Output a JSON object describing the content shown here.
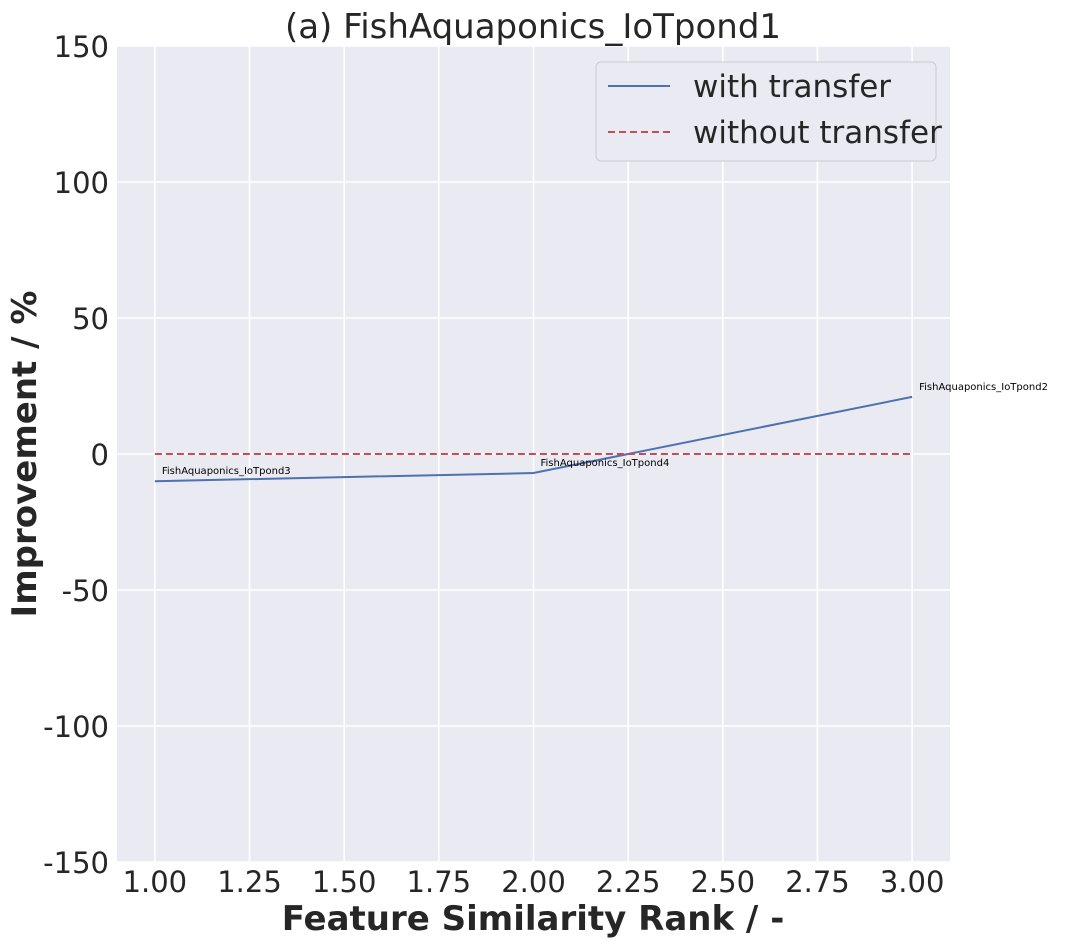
{
  "chart_data": {
    "type": "line",
    "title": "(a) FishAquaponics_IoTpond1",
    "xlabel": "Feature Similarity Rank / -",
    "ylabel": "Improvement / %",
    "xlim": [
      0.9,
      3.1
    ],
    "ylim": [
      -150,
      150
    ],
    "xticks": [
      1.0,
      1.25,
      1.5,
      1.75,
      2.0,
      2.25,
      2.5,
      2.75,
      3.0
    ],
    "xtick_labels": [
      "1.00",
      "1.25",
      "1.50",
      "1.75",
      "2.00",
      "2.25",
      "2.50",
      "2.75",
      "3.00"
    ],
    "yticks": [
      -150,
      -100,
      -50,
      0,
      50,
      100,
      150
    ],
    "ytick_labels": [
      "-150",
      "-100",
      "-50",
      "0",
      "50",
      "100",
      "150"
    ],
    "grid": true,
    "legend_position": "top-right",
    "series": [
      {
        "name": "with transfer",
        "x": [
          1,
          2,
          3
        ],
        "y": [
          -10,
          -7,
          21
        ],
        "color": "#4c72b0",
        "style": "solid"
      },
      {
        "name": "without transfer",
        "x": [
          1,
          2,
          3
        ],
        "y": [
          0,
          0,
          0
        ],
        "color": "#c44e52",
        "style": "dashed"
      }
    ],
    "annotations": [
      {
        "text": "FishAquaponics_IoTpond3",
        "x": 1,
        "y": -10
      },
      {
        "text": "FishAquaponics_IoTpond4",
        "x": 2,
        "y": -7
      },
      {
        "text": "FishAquaponics_IoTpond2",
        "x": 3,
        "y": 21
      }
    ],
    "plot_background": "#eaeaf2",
    "grid_color": "#ffffff"
  }
}
